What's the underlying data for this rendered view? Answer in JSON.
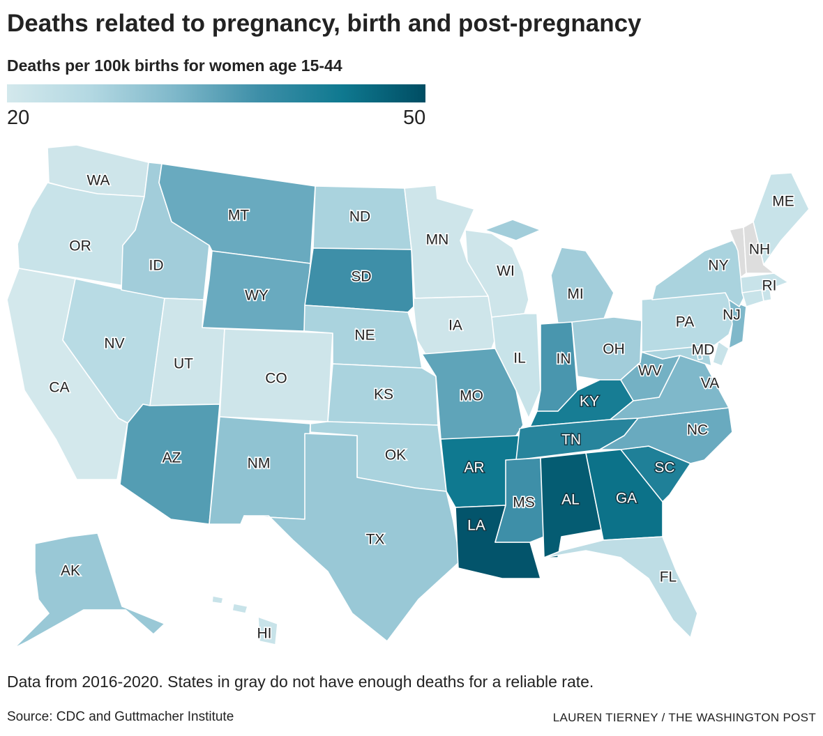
{
  "title": "Deaths related to pregnancy, birth and post-pregnancy",
  "subtitle": "Deaths per 100k births for women age 15-44",
  "legend": {
    "min_label": "20",
    "max_label": "50",
    "min": 20,
    "max": 50,
    "colors": [
      "#d3e8ec",
      "#b3d8e2",
      "#7fb8ca",
      "#3e8fa8",
      "#0f7990",
      "#004d63"
    ]
  },
  "no_data_color": "#dddddd",
  "note": "Data from 2016-2020. States in gray do not have enough deaths for a reliable rate.",
  "source": "Source: CDC and Guttmacher Institute",
  "credit": "LAUREN TIERNEY / THE WASHINGTON POST",
  "states": [
    {
      "abbr": "WA",
      "value": 21
    },
    {
      "abbr": "OR",
      "value": 22
    },
    {
      "abbr": "CA",
      "value": 20
    },
    {
      "abbr": "NV",
      "value": 25
    },
    {
      "abbr": "ID",
      "value": 28
    },
    {
      "abbr": "MT",
      "value": 34
    },
    {
      "abbr": "WY",
      "value": 34
    },
    {
      "abbr": "UT",
      "value": 21
    },
    {
      "abbr": "CO",
      "value": 21
    },
    {
      "abbr": "AZ",
      "value": 36
    },
    {
      "abbr": "NM",
      "value": 30
    },
    {
      "abbr": "ND",
      "value": 27
    },
    {
      "abbr": "SD",
      "value": 38
    },
    {
      "abbr": "NE",
      "value": 27
    },
    {
      "abbr": "KS",
      "value": 27
    },
    {
      "abbr": "OK",
      "value": 27
    },
    {
      "abbr": "TX",
      "value": 29
    },
    {
      "abbr": "MN",
      "value": 21
    },
    {
      "abbr": "IA",
      "value": 21
    },
    {
      "abbr": "MO",
      "value": 35
    },
    {
      "abbr": "AR",
      "value": 44
    },
    {
      "abbr": "LA",
      "value": 49
    },
    {
      "abbr": "WI",
      "value": 21
    },
    {
      "abbr": "IL",
      "value": 22
    },
    {
      "abbr": "MI",
      "value": 28
    },
    {
      "abbr": "IN",
      "value": 37
    },
    {
      "abbr": "OH",
      "value": 28
    },
    {
      "abbr": "KY",
      "value": 43
    },
    {
      "abbr": "TN",
      "value": 41
    },
    {
      "abbr": "MS",
      "value": 38
    },
    {
      "abbr": "AL",
      "value": 48
    },
    {
      "abbr": "GA",
      "value": 45
    },
    {
      "abbr": "FL",
      "value": 24
    },
    {
      "abbr": "SC",
      "value": 42
    },
    {
      "abbr": "NC",
      "value": 34
    },
    {
      "abbr": "VA",
      "value": 32
    },
    {
      "abbr": "WV",
      "value": 33
    },
    {
      "abbr": "MD",
      "value": 27
    },
    {
      "abbr": "DE",
      "value": 22
    },
    {
      "abbr": "PA",
      "value": 25
    },
    {
      "abbr": "NJ",
      "value": 32
    },
    {
      "abbr": "NY",
      "value": 27
    },
    {
      "abbr": "CT",
      "value": 22
    },
    {
      "abbr": "RI",
      "value": 22
    },
    {
      "abbr": "MA",
      "value": 22
    },
    {
      "abbr": "VT",
      "value": null
    },
    {
      "abbr": "NH",
      "value": null
    },
    {
      "abbr": "ME",
      "value": 22
    },
    {
      "abbr": "AK",
      "value": 29
    },
    {
      "abbr": "HI",
      "value": 22
    },
    {
      "abbr": "DC",
      "value": 28
    }
  ]
}
